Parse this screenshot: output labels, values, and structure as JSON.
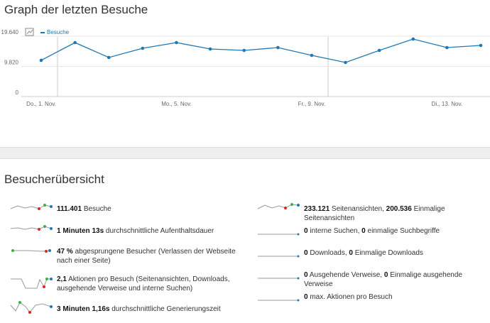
{
  "graph_widget": {
    "title": "Graph der letzten Besuche",
    "chart_data": {
      "type": "line",
      "categories": [
        "Do., 1. Nov.",
        null,
        null,
        null,
        "Mo., 5. Nov.",
        null,
        null,
        null,
        "Fr., 9. Nov.",
        null,
        null,
        null,
        "Di., 13. Nov.",
        null
      ],
      "series": [
        {
          "name": "Besuche",
          "color": "#1f78b4",
          "values": [
            11790,
            17560,
            12710,
            15710,
            17560,
            15480,
            15020,
            15940,
            13400,
            11090,
            15020,
            18710,
            15940,
            16630
          ]
        }
      ],
      "ylim": [
        0,
        19640
      ],
      "yticks": [
        {
          "value": 19640,
          "label": "19.640"
        },
        {
          "value": 9820,
          "label": "9.820"
        },
        0
      ],
      "grid": true,
      "legend": "top-left"
    }
  },
  "overview_widget": {
    "title": "Besucherübersicht",
    "left": [
      {
        "parts": [
          {
            "b": "111.401"
          },
          {
            "t": " Besuche"
          }
        ]
      },
      {
        "parts": [
          {
            "b": "1 Minuten 13s"
          },
          {
            "t": " durchschnittliche Aufenthaltsdauer"
          }
        ]
      },
      {
        "parts": [
          {
            "b": "47 %"
          },
          {
            "t": " abgesprungene Besucher (Verlassen der Webseite nach einer Seite)"
          }
        ]
      },
      {
        "parts": [
          {
            "b": "2,1"
          },
          {
            "t": " Aktionen pro Besuch (Seitenansichten, Downloads, ausgehende Verweise und interne Suchen)"
          }
        ]
      },
      {
        "parts": [
          {
            "b": "3 Minuten 1,16s"
          },
          {
            "t": " durchschnittliche Generierungszeit"
          }
        ]
      }
    ],
    "right": [
      {
        "parts": [
          {
            "b": "233.121"
          },
          {
            "t": " Seitenansichten, "
          },
          {
            "b": "200.536"
          },
          {
            "t": " Einmalige Seitenansichten"
          }
        ]
      },
      {
        "parts": [
          {
            "b": "0"
          },
          {
            "t": " interne Suchen, "
          },
          {
            "b": "0"
          },
          {
            "t": " einmalige Suchbegriffe"
          }
        ]
      },
      {
        "parts": [
          {
            "b": "0"
          },
          {
            "t": " Downloads, "
          },
          {
            "b": "0"
          },
          {
            "t": " Einmalige Downloads"
          }
        ]
      },
      {
        "parts": [
          {
            "b": "0"
          },
          {
            "t": " Ausgehende Verweise, "
          },
          {
            "b": "0"
          },
          {
            "t": " Einmalige ausgehende Verweise"
          }
        ]
      },
      {
        "parts": [
          {
            "b": "0"
          },
          {
            "t": " max. Aktionen pro Besuch"
          }
        ]
      }
    ]
  }
}
